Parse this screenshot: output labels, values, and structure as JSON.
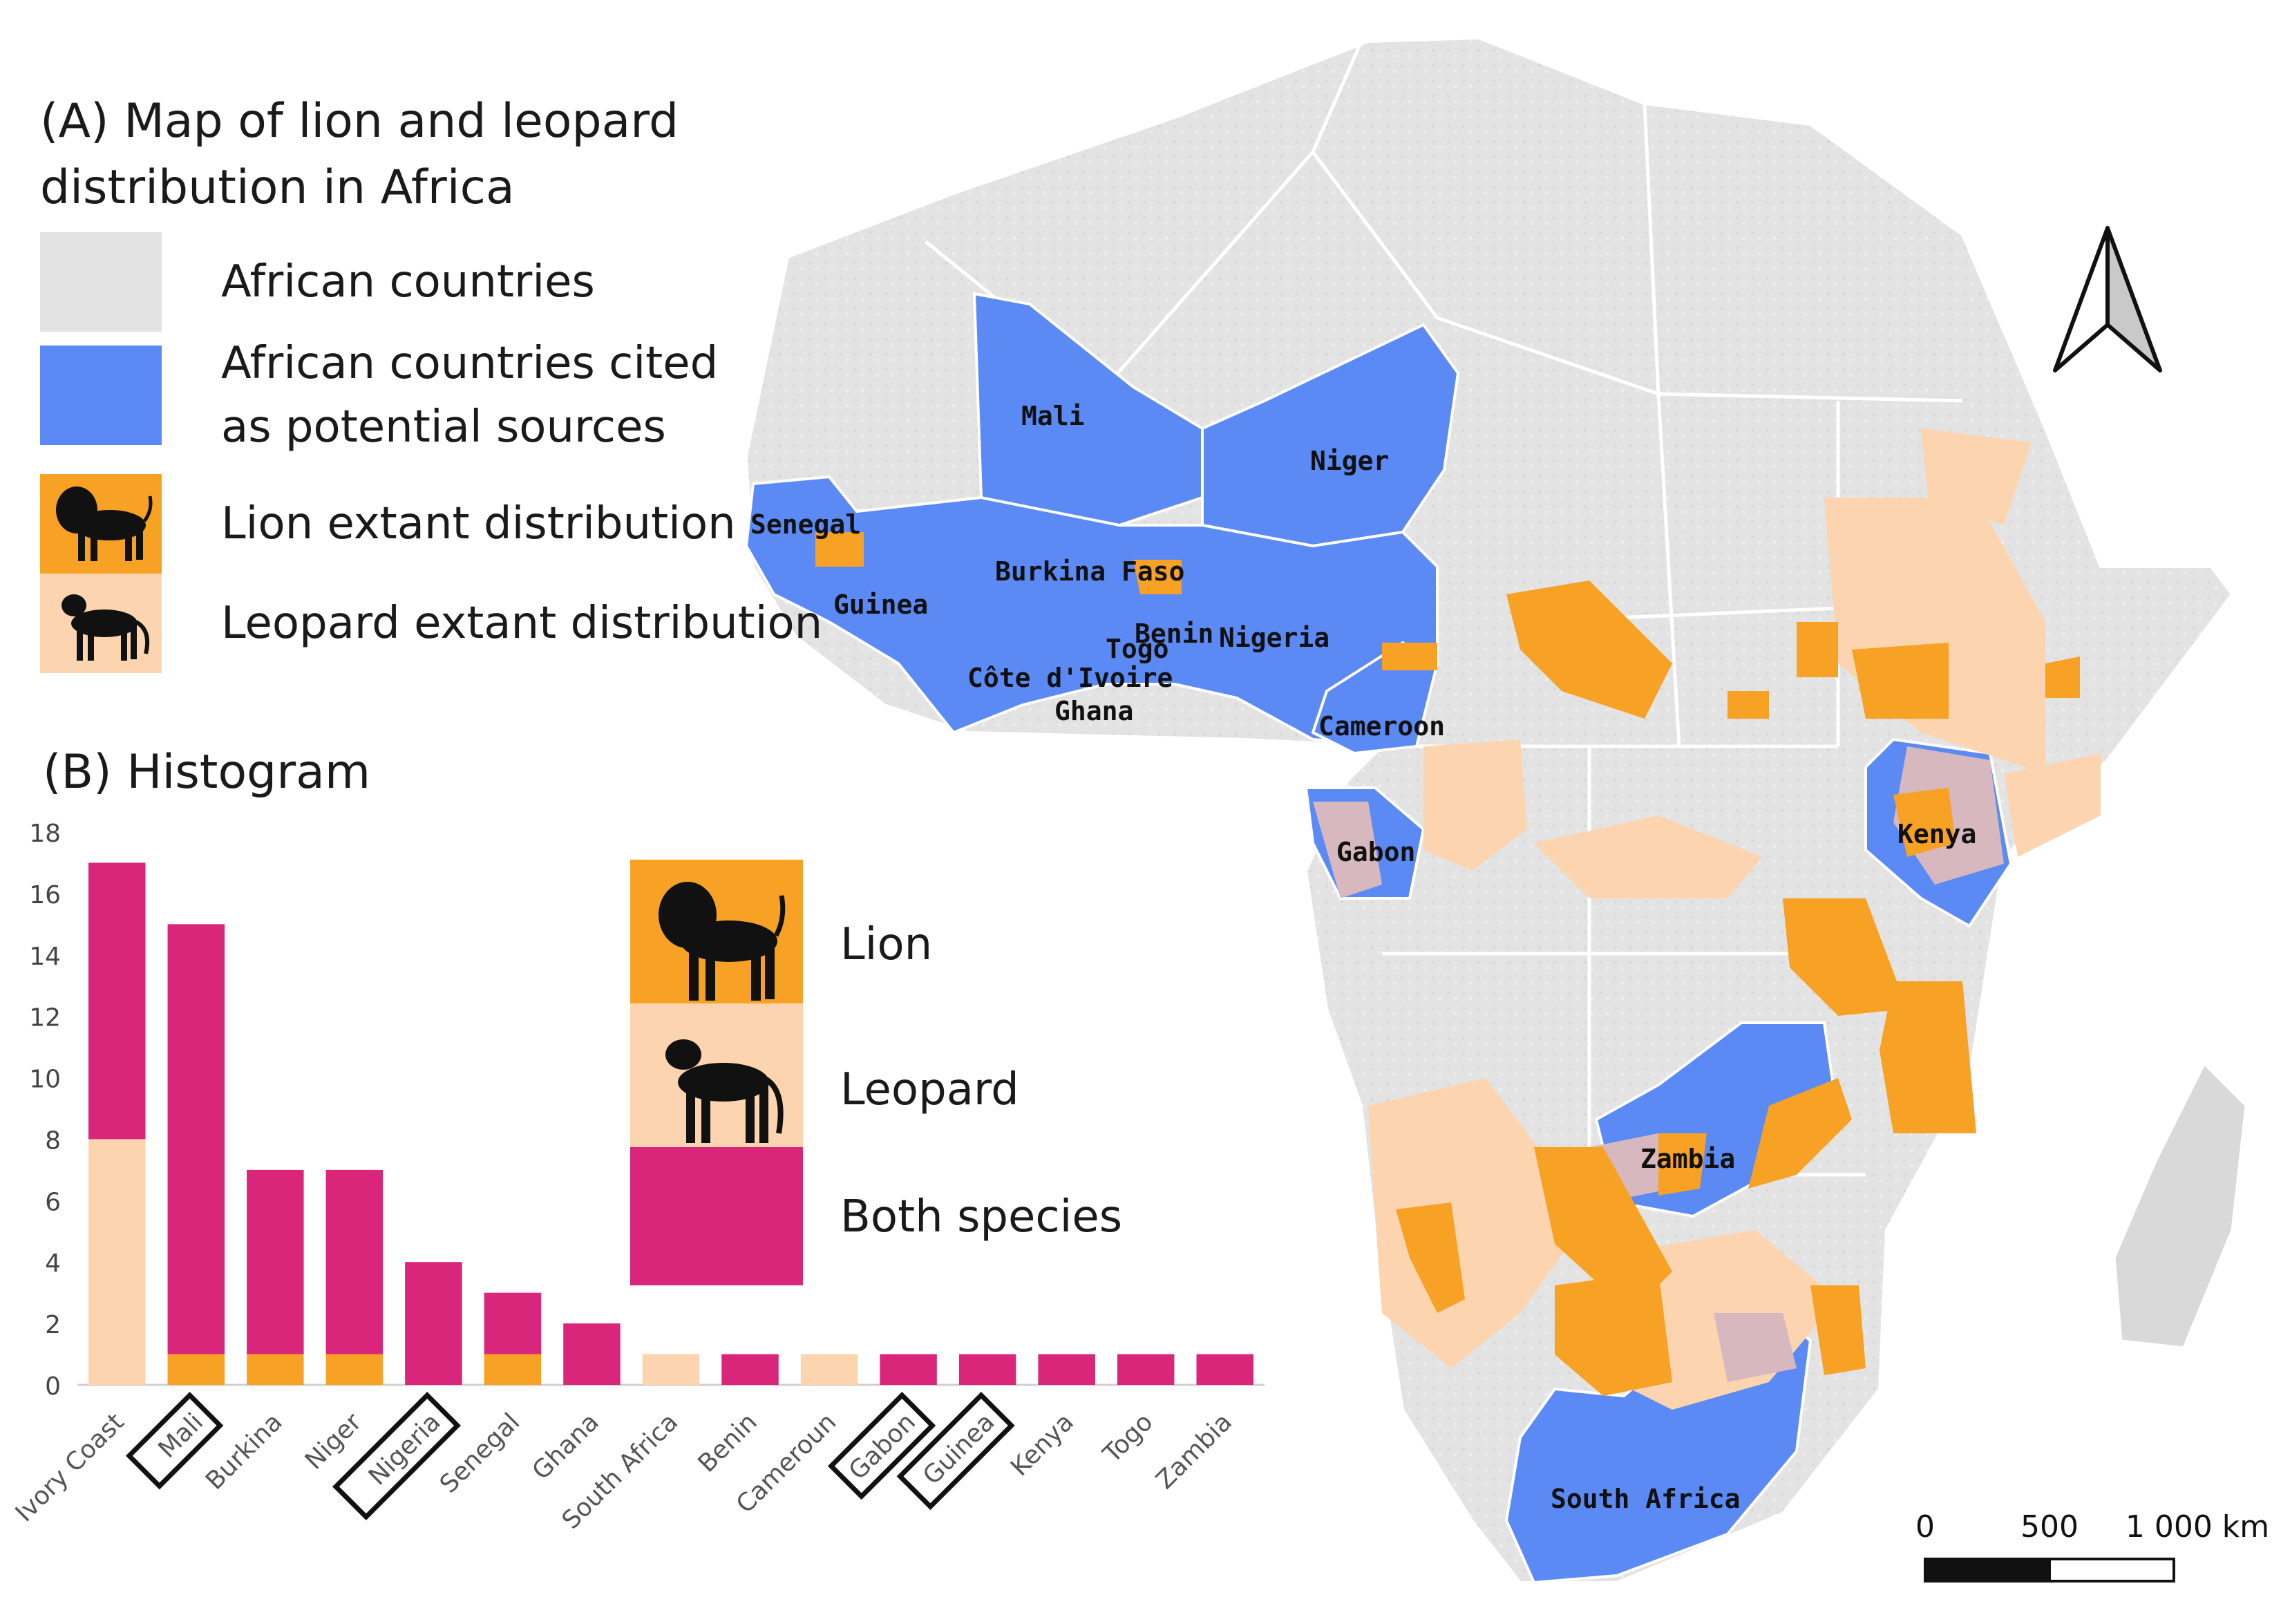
{
  "legend": {
    "title": "(A) Map of lion and leopard distribution in Africa",
    "items": [
      {
        "label": "African countries",
        "color": "#e3e3e3",
        "icon": "none"
      },
      {
        "label": "African countries cited as potential sources",
        "color": "#5b8af5",
        "icon": "none"
      },
      {
        "label": "Lion extant distribution",
        "color": "#f7a125",
        "icon": "lion-icon"
      },
      {
        "label": "Leopard extant distribution",
        "color": "#fcd5b0",
        "icon": "leopard-icon"
      }
    ]
  },
  "map": {
    "country_labels": [
      "Mali",
      "Niger",
      "Senegal",
      "Burkina Faso",
      "Guinea",
      "Benin",
      "Togo",
      "Nigeria",
      "Côte d'Ivoire",
      "Ghana",
      "Cameroon",
      "Gabon",
      "Kenya",
      "Zambia",
      "South Africa"
    ],
    "north_arrow": "north-arrow-icon",
    "scale_bar": {
      "labels": [
        "0",
        "500",
        "1 000 km"
      ]
    },
    "colors": {
      "land": "#e3e3e3",
      "cited": "#5b8af5",
      "lion": "#f7a125",
      "leopard": "#fcd5b0",
      "overlap": "#d7b8bf",
      "border": "#ffffff"
    }
  },
  "histogram": {
    "title": "(B) Histogram",
    "species_legend": [
      {
        "label": "Lion",
        "color": "#f7a125",
        "icon": "lion-icon"
      },
      {
        "label": "Leopard",
        "color": "#fcd5b0",
        "icon": "leopard-icon"
      },
      {
        "label": "Both species",
        "color": "#d9267a",
        "icon": "none"
      }
    ]
  },
  "chart_data": {
    "type": "bar",
    "stacked": true,
    "title": "(B) Histogram",
    "categories": [
      "Ivory Coast",
      "Mali",
      "Burkina",
      "Niger",
      "Nigeria",
      "Senegal",
      "Ghana",
      "South Africa",
      "Benin",
      "Cameroun",
      "Gabon",
      "Guinea",
      "Kenya",
      "Togo",
      "Zambia"
    ],
    "boxed_categories": [
      "Mali",
      "Nigeria",
      "Gabon",
      "Guinea"
    ],
    "series": [
      {
        "name": "Leopard",
        "color": "#fcd5b0",
        "values": [
          8,
          0,
          0,
          0,
          0,
          0,
          0,
          1,
          0,
          1,
          0,
          0,
          0,
          0,
          0
        ]
      },
      {
        "name": "Lion",
        "color": "#f7a125",
        "values": [
          0,
          1,
          1,
          1,
          0,
          1,
          0,
          0,
          0,
          0,
          0,
          0,
          0,
          0,
          0
        ]
      },
      {
        "name": "Both species",
        "color": "#d9267a",
        "values": [
          9,
          14,
          6,
          6,
          4,
          2,
          2,
          0,
          1,
          0,
          1,
          1,
          1,
          1,
          1
        ]
      }
    ],
    "yticks": [
      "0",
      "2",
      "4",
      "6",
      "8",
      "10",
      "12",
      "14",
      "16",
      "18"
    ],
    "ylim": [
      0,
      18
    ],
    "xlabel": "",
    "ylabel": ""
  }
}
